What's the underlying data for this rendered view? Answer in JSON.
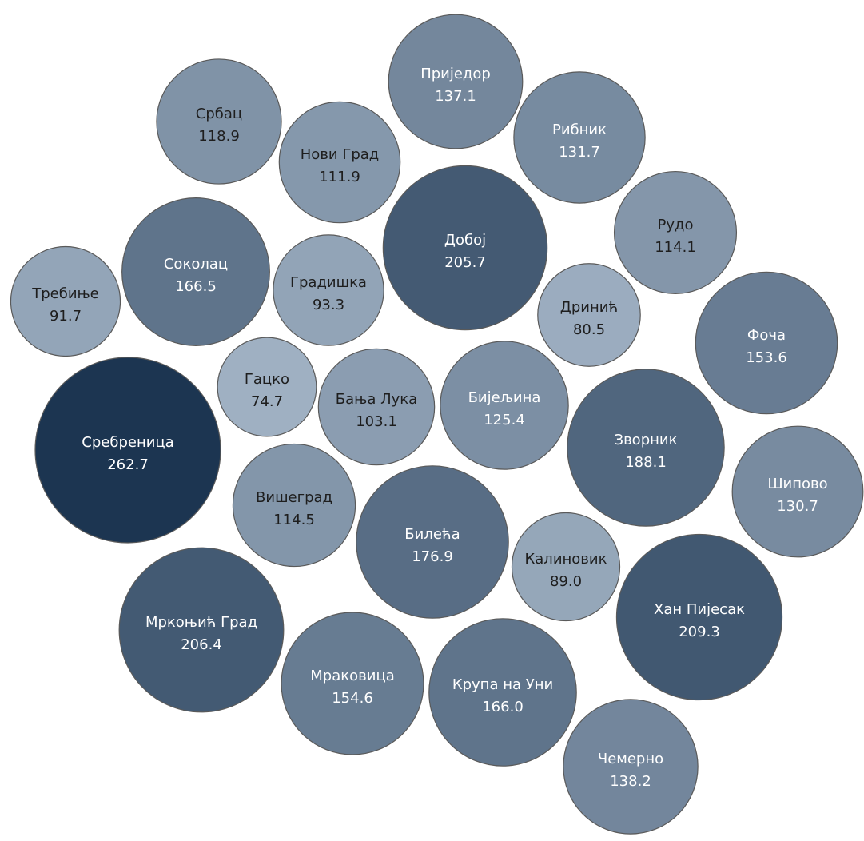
{
  "chart_data": {
    "type": "bubble",
    "color_scale": {
      "light": "#9fb0c2",
      "dark": "#1c3551",
      "light_text": "#1e1e1e",
      "dark_text": "#ffffff"
    },
    "bubbles": [
      {
        "label": "Сребреница",
        "value": 262.7
      },
      {
        "label": "Хан Пијесак",
        "value": 209.3
      },
      {
        "label": "Мркоњић Град",
        "value": 206.4
      },
      {
        "label": "Добој",
        "value": 205.7
      },
      {
        "label": "Зворник",
        "value": 188.1
      },
      {
        "label": "Билећа",
        "value": 176.9
      },
      {
        "label": "Соколац",
        "value": 166.5
      },
      {
        "label": "Крупа на Уни",
        "value": 166.0
      },
      {
        "label": "Мраковица",
        "value": 154.6
      },
      {
        "label": "Фоча",
        "value": 153.6
      },
      {
        "label": "Чемерно",
        "value": 138.2
      },
      {
        "label": "Приједор",
        "value": 137.1
      },
      {
        "label": "Рибник",
        "value": 131.7
      },
      {
        "label": "Шипово",
        "value": 130.7
      },
      {
        "label": "Бијељина",
        "value": 125.4
      },
      {
        "label": "Србац",
        "value": 118.9
      },
      {
        "label": "Вишеград",
        "value": 114.5
      },
      {
        "label": "Рудо",
        "value": 114.1
      },
      {
        "label": "Нови Град",
        "value": 111.9
      },
      {
        "label": "Бања Лука",
        "value": 103.1
      },
      {
        "label": "Градишка",
        "value": 93.3
      },
      {
        "label": "Требиње",
        "value": 91.7
      },
      {
        "label": "Калиновик",
        "value": 89.0
      },
      {
        "label": "Дринић",
        "value": 80.5
      },
      {
        "label": "Гацко",
        "value": 74.7
      }
    ]
  }
}
